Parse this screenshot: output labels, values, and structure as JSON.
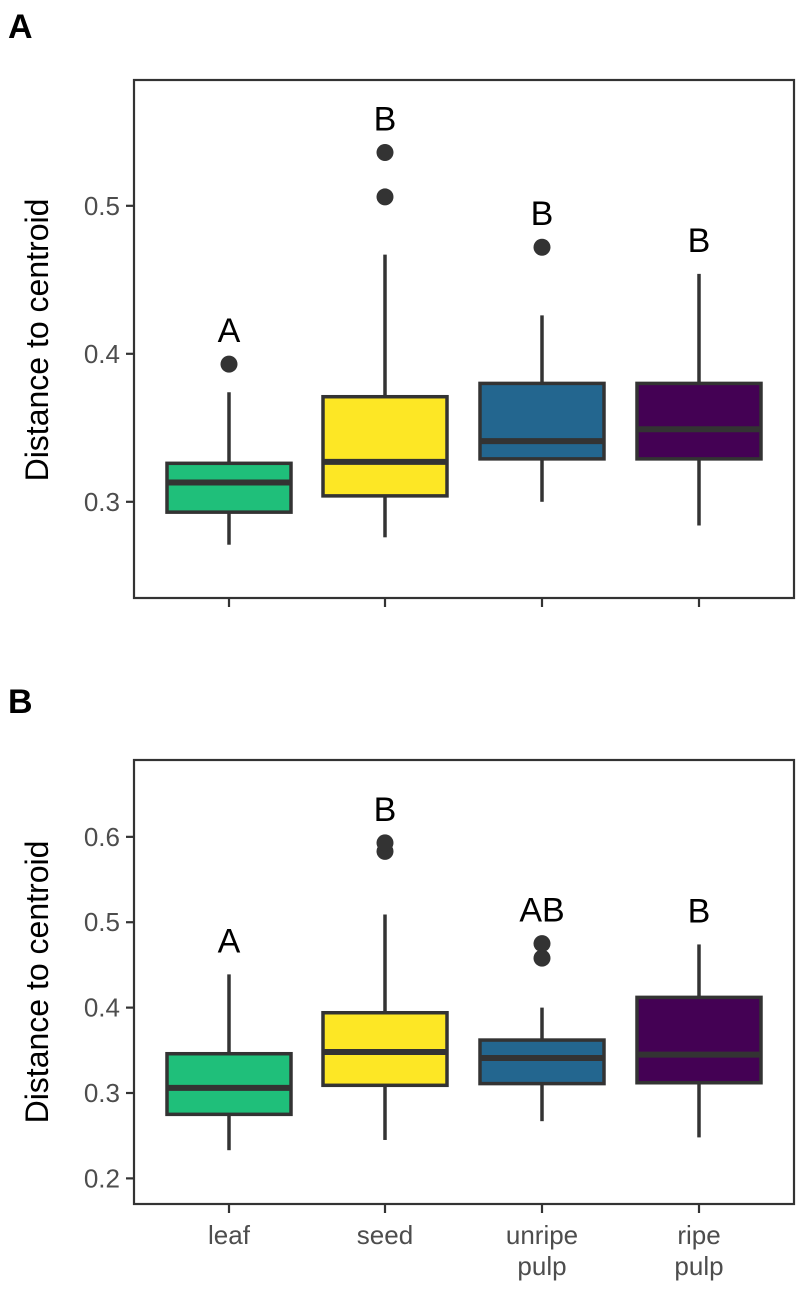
{
  "chart_data": [
    {
      "type": "box",
      "panel_label": "A",
      "ylabel": "Distance to centroid",
      "xlabel": "",
      "ylim": [
        0.235,
        0.585
      ],
      "yticks": [
        0.3,
        0.4,
        0.5
      ],
      "ytick_labels": [
        "0.3",
        "0.4",
        "0.5"
      ],
      "categories": [
        "leaf",
        "seed",
        "unripe pulp",
        "ripe pulp"
      ],
      "show_category_labels": false,
      "colors": [
        "#1fbf7a",
        "#fde725",
        "#23668f",
        "#440154"
      ],
      "boxes": [
        {
          "category": "leaf",
          "whisker_low": 0.271,
          "q1": 0.293,
          "median": 0.313,
          "q3": 0.326,
          "whisker_high": 0.374,
          "outliers": [
            0.393
          ],
          "group": "A"
        },
        {
          "category": "seed",
          "whisker_low": 0.276,
          "q1": 0.304,
          "median": 0.327,
          "q3": 0.371,
          "whisker_high": 0.467,
          "outliers": [
            0.506,
            0.536
          ],
          "group": "B"
        },
        {
          "category": "unripe pulp",
          "whisker_low": 0.3,
          "q1": 0.329,
          "median": 0.341,
          "q3": 0.38,
          "whisker_high": 0.426,
          "outliers": [
            0.472
          ],
          "group": "B"
        },
        {
          "category": "ripe pulp",
          "whisker_low": 0.284,
          "q1": 0.329,
          "median": 0.349,
          "q3": 0.38,
          "whisker_high": 0.454,
          "outliers": [],
          "group": "B"
        }
      ]
    },
    {
      "type": "box",
      "panel_label": "B",
      "ylabel": "Distance to centroid",
      "xlabel": "",
      "ylim": [
        0.17,
        0.69
      ],
      "yticks": [
        0.2,
        0.3,
        0.4,
        0.5,
        0.6
      ],
      "ytick_labels": [
        "0.2",
        "0.3",
        "0.4",
        "0.5",
        "0.6"
      ],
      "categories": [
        "leaf",
        "seed",
        "unripe pulp",
        "ripe pulp"
      ],
      "category_label_lines": [
        [
          "leaf"
        ],
        [
          "seed"
        ],
        [
          "unripe",
          "pulp"
        ],
        [
          "ripe",
          "pulp"
        ]
      ],
      "show_category_labels": true,
      "colors": [
        "#1fbf7a",
        "#fde725",
        "#23668f",
        "#440154"
      ],
      "boxes": [
        {
          "category": "leaf",
          "whisker_low": 0.233,
          "q1": 0.275,
          "median": 0.306,
          "q3": 0.346,
          "whisker_high": 0.439,
          "outliers": [],
          "group": "A"
        },
        {
          "category": "seed",
          "whisker_low": 0.245,
          "q1": 0.309,
          "median": 0.348,
          "q3": 0.394,
          "whisker_high": 0.509,
          "outliers": [
            0.583,
            0.593
          ],
          "group": "B"
        },
        {
          "category": "unripe pulp",
          "whisker_low": 0.267,
          "q1": 0.311,
          "median": 0.341,
          "q3": 0.362,
          "whisker_high": 0.4,
          "outliers": [
            0.458,
            0.475
          ],
          "group": "AB"
        },
        {
          "category": "ripe pulp",
          "whisker_low": 0.248,
          "q1": 0.312,
          "median": 0.345,
          "q3": 0.412,
          "whisker_high": 0.474,
          "outliers": [],
          "group": "B"
        }
      ]
    }
  ]
}
